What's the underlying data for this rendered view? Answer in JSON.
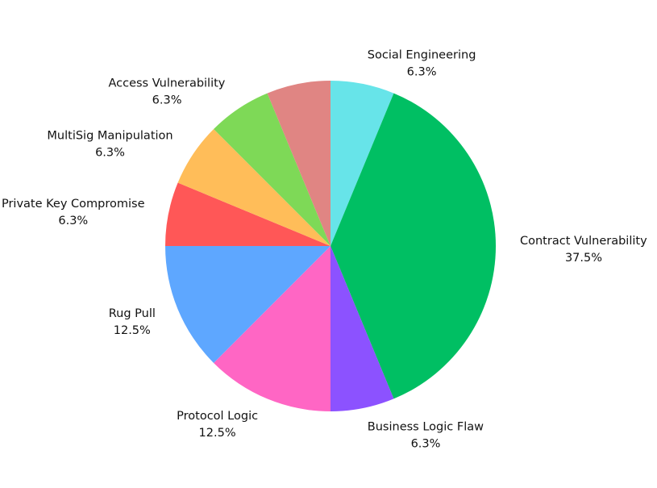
{
  "chart_data": {
    "type": "pie",
    "title": "",
    "start_angle_deg": 90,
    "direction": "clockwise",
    "slices": [
      {
        "label": "Social Engineering",
        "value": 6.25,
        "pct_label": "6.3%",
        "color": "#67E4E9"
      },
      {
        "label": "Contract Vulnerability",
        "value": 37.5,
        "pct_label": "37.5%",
        "color": "#00BF63"
      },
      {
        "label": "Business Logic Flaw",
        "value": 6.25,
        "pct_label": "6.3%",
        "color": "#8C52FF"
      },
      {
        "label": "Protocol Logic",
        "value": 12.5,
        "pct_label": "12.5%",
        "color": "#FF66C4"
      },
      {
        "label": "Rug Pull",
        "value": 12.5,
        "pct_label": "12.5%",
        "color": "#5EA7FF"
      },
      {
        "label": "Private Key Compromise",
        "value": 6.25,
        "pct_label": "6.3%",
        "color": "#FF5757"
      },
      {
        "label": "MultiSig Manipulation",
        "value": 6.25,
        "pct_label": "6.3%",
        "color": "#FFBD59"
      },
      {
        "label": "Access Vulnerability",
        "value": 6.25,
        "pct_label": "6.3%",
        "color": "#7ED957"
      },
      {
        "label": "",
        "value": 6.25,
        "pct_label": "",
        "color": "#E08583"
      }
    ]
  }
}
